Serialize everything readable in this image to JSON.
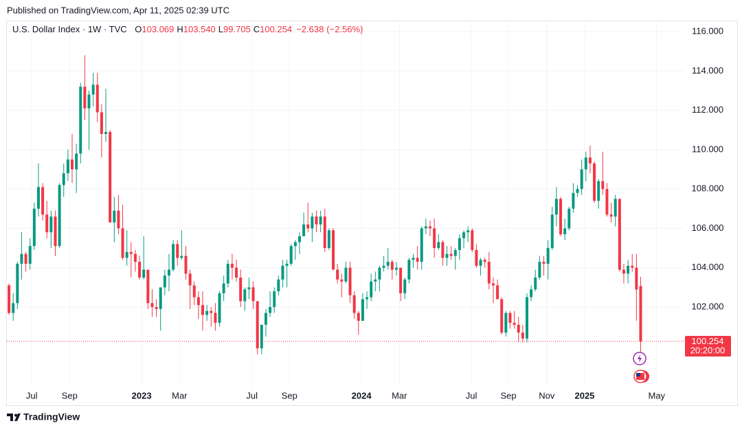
{
  "chart_data": {
    "type": "candlestick",
    "published": "Published on TradingView.com, Apr 11, 2025 02:39 UTC",
    "title": "U.S. Dollar Index · 1W · TVC",
    "ohlc_prefixes": [
      "O",
      "H",
      "L",
      "C"
    ],
    "last_labels": [
      "103.069",
      "103.540",
      "99.705",
      "100.254"
    ],
    "change": {
      "value": -2.638,
      "label": "−2.638"
    },
    "change_pct": {
      "value": -2.56,
      "label": "(−2.56%)"
    },
    "countdown": "20:20:00",
    "brand": "TradingView",
    "up_color": "#089981",
    "down_color": "#f23645",
    "grid": true,
    "xlim": [
      -0.5,
      160.2
    ],
    "ylim": [
      97.95,
      116.49
    ],
    "yticks": [
      {
        "value": 102,
        "label": "102.000"
      },
      {
        "value": 104,
        "label": "104.000"
      },
      {
        "value": 106,
        "label": "106.000"
      },
      {
        "value": 108,
        "label": "108.000"
      },
      {
        "value": 110,
        "label": "110.000"
      },
      {
        "value": 112,
        "label": "112.000"
      },
      {
        "value": 114,
        "label": "114.000"
      },
      {
        "value": 116,
        "label": "116.000"
      }
    ],
    "xticks": [
      {
        "value": 5.4,
        "label": "Jul"
      },
      {
        "value": 14.4,
        "label": "Sep"
      },
      {
        "value": 31.5,
        "label": "2023"
      },
      {
        "value": 40.5,
        "label": "Mar"
      },
      {
        "value": 57.7,
        "label": "Jul"
      },
      {
        "value": 66.6,
        "label": "Sep"
      },
      {
        "value": 83.7,
        "label": "2024"
      },
      {
        "value": 92.7,
        "label": "Mar"
      },
      {
        "value": 109.8,
        "label": "Jul"
      },
      {
        "value": 118.6,
        "label": "Sep"
      },
      {
        "value": 127.7,
        "label": "Nov"
      },
      {
        "value": 136.7,
        "label": "2025"
      },
      {
        "value": 153.8,
        "label": "May"
      }
    ],
    "ohlc": [
      [
        103.1,
        103.2,
        101.6,
        101.7
      ],
      [
        101.7,
        102.7,
        101.3,
        102.2
      ],
      [
        102.2,
        104.3,
        101.9,
        104.2
      ],
      [
        104.2,
        105.8,
        103.4,
        104.7
      ],
      [
        104.7,
        104.8,
        103.8,
        104.2
      ],
      [
        104.2,
        105.5,
        103.9,
        105.1
      ],
      [
        105.1,
        107.3,
        104.9,
        107.0
      ],
      [
        107.0,
        109.3,
        106.6,
        108.1
      ],
      [
        108.1,
        108.3,
        106.4,
        106.7
      ],
      [
        106.7,
        107.4,
        105.5,
        105.8
      ],
      [
        105.8,
        106.9,
        105.0,
        106.6
      ],
      [
        106.6,
        106.9,
        104.6,
        105.1
      ],
      [
        105.1,
        108.3,
        105.0,
        108.2
      ],
      [
        108.2,
        109.3,
        107.6,
        108.8
      ],
      [
        108.8,
        110.0,
        108.4,
        109.5
      ],
      [
        109.5,
        110.8,
        108.3,
        109.0
      ],
      [
        109.0,
        110.3,
        107.8,
        109.8
      ],
      [
        109.8,
        113.4,
        109.3,
        113.2
      ],
      [
        113.2,
        114.8,
        111.5,
        112.1
      ],
      [
        112.1,
        113.0,
        110.0,
        112.8
      ],
      [
        112.8,
        113.9,
        112.2,
        113.3
      ],
      [
        113.3,
        113.9,
        111.4,
        111.9
      ],
      [
        111.9,
        112.3,
        109.6,
        110.8
      ],
      [
        110.8,
        113.1,
        110.4,
        110.9
      ],
      [
        110.9,
        111.0,
        106.3,
        106.3
      ],
      [
        106.3,
        107.6,
        105.3,
        106.9
      ],
      [
        106.9,
        107.7,
        105.7,
        106.0
      ],
      [
        106.0,
        107.2,
        104.4,
        104.5
      ],
      [
        104.5,
        105.9,
        104.1,
        104.8
      ],
      [
        104.8,
        105.3,
        103.5,
        104.7
      ],
      [
        104.7,
        104.9,
        103.8,
        104.3
      ],
      [
        104.3,
        104.6,
        103.4,
        103.5
      ],
      [
        103.5,
        105.6,
        103.4,
        103.9
      ],
      [
        103.9,
        103.9,
        101.9,
        102.2
      ],
      [
        102.2,
        102.9,
        101.5,
        102.0
      ],
      [
        102.0,
        102.4,
        101.5,
        101.9
      ],
      [
        101.9,
        103.0,
        100.8,
        103.0
      ],
      [
        103.0,
        103.9,
        102.6,
        103.6
      ],
      [
        103.6,
        104.7,
        102.8,
        103.9
      ],
      [
        103.9,
        105.4,
        103.8,
        105.2
      ],
      [
        105.2,
        105.4,
        104.1,
        104.5
      ],
      [
        104.5,
        105.9,
        104.4,
        104.6
      ],
      [
        104.6,
        105.1,
        103.4,
        103.7
      ],
      [
        103.7,
        103.9,
        101.9,
        103.1
      ],
      [
        103.1,
        103.3,
        102.1,
        102.5
      ],
      [
        102.5,
        102.8,
        101.4,
        102.1
      ],
      [
        102.1,
        102.8,
        100.8,
        101.6
      ],
      [
        101.6,
        102.1,
        101.3,
        101.8
      ],
      [
        101.8,
        102.0,
        101.0,
        101.7
      ],
      [
        101.7,
        102.2,
        100.8,
        101.2
      ],
      [
        101.2,
        102.8,
        101.0,
        102.7
      ],
      [
        102.7,
        103.6,
        102.3,
        103.2
      ],
      [
        103.2,
        104.4,
        103.0,
        104.2
      ],
      [
        104.2,
        104.7,
        103.4,
        104.0
      ],
      [
        104.0,
        104.4,
        103.3,
        103.5
      ],
      [
        103.5,
        103.9,
        102.0,
        102.3
      ],
      [
        102.3,
        103.0,
        101.8,
        102.9
      ],
      [
        102.9,
        103.5,
        102.4,
        103.0
      ],
      [
        103.0,
        103.3,
        101.9,
        102.3
      ],
      [
        102.3,
        102.3,
        99.6,
        99.9
      ],
      [
        99.9,
        101.1,
        99.6,
        101.1
      ],
      [
        101.1,
        101.9,
        100.5,
        101.7
      ],
      [
        101.7,
        102.8,
        101.5,
        102.0
      ],
      [
        102.0,
        103.0,
        101.7,
        102.8
      ],
      [
        102.8,
        103.6,
        102.6,
        103.4
      ],
      [
        103.4,
        104.4,
        103.0,
        104.1
      ],
      [
        104.1,
        104.4,
        103.0,
        104.2
      ],
      [
        104.2,
        105.2,
        104.1,
        105.1
      ],
      [
        105.1,
        105.4,
        104.4,
        105.3
      ],
      [
        105.3,
        105.8,
        104.7,
        105.6
      ],
      [
        105.6,
        106.8,
        105.6,
        106.2
      ],
      [
        106.2,
        107.3,
        105.8,
        106.0
      ],
      [
        106.0,
        106.8,
        105.3,
        106.6
      ],
      [
        106.6,
        106.9,
        105.8,
        106.2
      ],
      [
        106.2,
        106.9,
        105.8,
        106.6
      ],
      [
        106.6,
        107.0,
        104.8,
        105.0
      ],
      [
        105.0,
        106.0,
        104.9,
        105.9
      ],
      [
        105.9,
        106.0,
        103.9,
        103.9
      ],
      [
        103.9,
        104.2,
        103.2,
        103.4
      ],
      [
        103.4,
        103.7,
        102.5,
        103.3
      ],
      [
        103.3,
        104.3,
        103.2,
        104.0
      ],
      [
        104.0,
        104.3,
        102.2,
        102.6
      ],
      [
        102.6,
        102.8,
        101.4,
        101.7
      ],
      [
        101.7,
        101.8,
        100.6,
        101.3
      ],
      [
        101.3,
        102.7,
        101.3,
        102.4
      ],
      [
        102.4,
        102.8,
        101.9,
        102.5
      ],
      [
        102.5,
        103.7,
        102.3,
        103.3
      ],
      [
        103.3,
        103.8,
        102.8,
        103.4
      ],
      [
        103.4,
        104.1,
        102.8,
        104.0
      ],
      [
        104.0,
        104.6,
        103.8,
        104.1
      ],
      [
        104.1,
        105.0,
        103.9,
        104.3
      ],
      [
        104.3,
        104.4,
        103.4,
        103.9
      ],
      [
        103.9,
        104.3,
        103.6,
        104.0
      ],
      [
        104.0,
        104.0,
        102.3,
        102.7
      ],
      [
        102.7,
        103.5,
        102.4,
        103.4
      ],
      [
        103.4,
        104.5,
        103.2,
        104.4
      ],
      [
        104.4,
        104.7,
        104.0,
        104.5
      ],
      [
        104.5,
        105.1,
        103.9,
        104.3
      ],
      [
        104.3,
        106.1,
        103.9,
        106.0
      ],
      [
        106.0,
        106.5,
        105.7,
        106.1
      ],
      [
        106.1,
        106.4,
        105.6,
        106.0
      ],
      [
        106.0,
        106.5,
        104.5,
        105.0
      ],
      [
        105.0,
        105.7,
        104.9,
        105.3
      ],
      [
        105.3,
        105.4,
        104.1,
        104.5
      ],
      [
        104.5,
        105.1,
        104.1,
        104.7
      ],
      [
        104.7,
        105.1,
        104.4,
        104.6
      ],
      [
        104.6,
        105.0,
        103.9,
        104.9
      ],
      [
        104.9,
        105.7,
        104.4,
        105.5
      ],
      [
        105.5,
        105.9,
        105.0,
        105.8
      ],
      [
        105.8,
        106.1,
        105.3,
        105.9
      ],
      [
        105.9,
        106.0,
        104.8,
        104.9
      ],
      [
        104.9,
        105.2,
        104.0,
        104.1
      ],
      [
        104.1,
        104.5,
        103.6,
        104.4
      ],
      [
        104.4,
        104.5,
        104.0,
        104.3
      ],
      [
        104.3,
        104.8,
        102.9,
        103.2
      ],
      [
        103.2,
        103.5,
        102.2,
        103.1
      ],
      [
        103.1,
        103.4,
        102.4,
        102.4
      ],
      [
        102.4,
        102.5,
        100.6,
        100.7
      ],
      [
        100.7,
        101.8,
        100.5,
        101.7
      ],
      [
        101.7,
        101.8,
        100.9,
        101.2
      ],
      [
        101.2,
        101.8,
        100.9,
        101.1
      ],
      [
        101.1,
        101.5,
        100.2,
        100.7
      ],
      [
        100.7,
        101.1,
        100.2,
        100.4
      ],
      [
        100.4,
        102.7,
        100.2,
        102.5
      ],
      [
        102.5,
        103.1,
        102.3,
        102.9
      ],
      [
        102.9,
        103.9,
        102.8,
        103.5
      ],
      [
        103.5,
        104.6,
        103.4,
        104.3
      ],
      [
        104.3,
        104.6,
        103.6,
        104.2
      ],
      [
        104.2,
        105.4,
        103.4,
        105.0
      ],
      [
        105.0,
        107.1,
        104.9,
        106.7
      ],
      [
        106.7,
        108.1,
        106.1,
        107.5
      ],
      [
        107.5,
        107.6,
        105.6,
        105.7
      ],
      [
        105.7,
        106.5,
        105.4,
        106.0
      ],
      [
        106.0,
        107.1,
        105.9,
        107.0
      ],
      [
        107.0,
        108.3,
        106.8,
        107.8
      ],
      [
        107.8,
        108.2,
        107.6,
        108.0
      ],
      [
        108.0,
        109.5,
        107.7,
        109.0
      ],
      [
        109.0,
        109.9,
        108.4,
        109.6
      ],
      [
        109.6,
        110.2,
        108.8,
        109.3
      ],
      [
        109.3,
        109.4,
        107.3,
        107.4
      ],
      [
        107.4,
        108.5,
        107.0,
        108.4
      ],
      [
        108.4,
        109.9,
        107.7,
        108.0
      ],
      [
        108.0,
        108.3,
        106.6,
        106.7
      ],
      [
        106.7,
        107.3,
        106.3,
        106.6
      ],
      [
        106.6,
        107.7,
        106.1,
        107.5
      ],
      [
        107.5,
        107.5,
        103.8,
        103.9
      ],
      [
        103.9,
        104.2,
        103.2,
        103.7
      ],
      [
        103.7,
        104.4,
        103.2,
        104.1
      ],
      [
        104.1,
        104.7,
        103.8,
        104.0
      ],
      [
        104.0,
        104.7,
        101.3,
        102.892
      ],
      [
        103.069,
        103.54,
        99.705,
        100.254
      ]
    ]
  }
}
